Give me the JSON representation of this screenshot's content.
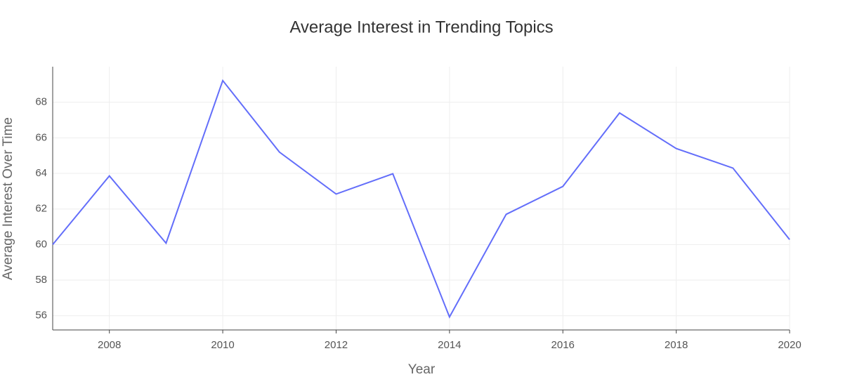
{
  "chart_data": {
    "type": "line",
    "title": "Average Interest in Trending Topics",
    "x_label": "Year",
    "y_label": "Average Interest Over Time",
    "x": [
      2007,
      2008,
      2009,
      2010,
      2011,
      2012,
      2013,
      2014,
      2015,
      2016,
      2017,
      2018,
      2019,
      2020
    ],
    "series": [
      {
        "color": "#636efa",
        "values": [
          60.0,
          63.86,
          60.08,
          69.22,
          65.2,
          62.84,
          63.98,
          55.93,
          61.7,
          63.27,
          67.4,
          65.4,
          64.3,
          60.28
        ]
      }
    ],
    "xlim": [
      2007,
      2020
    ],
    "xticks": [
      2008,
      2010,
      2012,
      2014,
      2016,
      2018,
      2020
    ],
    "ylim": [
      55.2,
      70
    ],
    "yticks": [
      56,
      58,
      60,
      62,
      64,
      66,
      68
    ],
    "grid": true
  }
}
